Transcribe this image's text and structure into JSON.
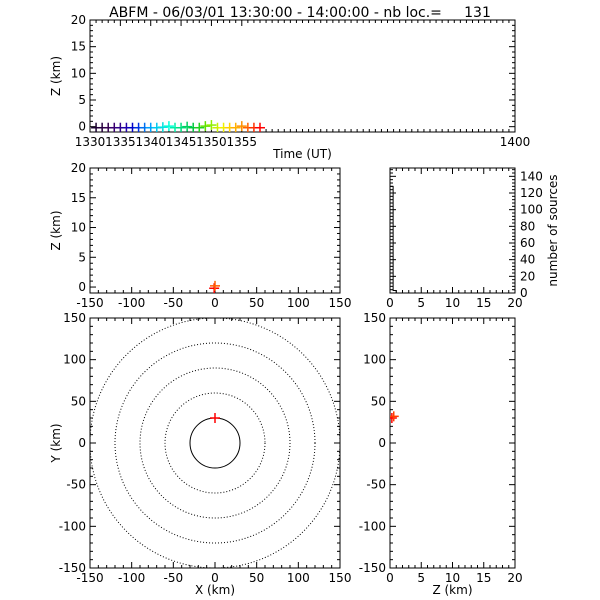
{
  "title": "ABFM - 06/03/01 13:30:00 - 14:00:00 - nb loc.=     131",
  "chart_data": [
    {
      "id": "time-height",
      "type": "scatter",
      "xlabel": "Time (UT)",
      "ylabel": "Z (km)",
      "xlim": [
        1330,
        1400
      ],
      "ylim": [
        -1,
        20
      ],
      "xticks": [
        "1330",
        "1335",
        "1340",
        "1345",
        "1350",
        "1355",
        "1400"
      ],
      "yticks": [
        "0",
        "5",
        "10",
        "15",
        "20"
      ],
      "points": [
        {
          "x": 1331.0,
          "y": -0.2,
          "color": "#1a0030"
        },
        {
          "x": 1332.0,
          "y": -0.2,
          "color": "#26003f"
        },
        {
          "x": 1333.0,
          "y": -0.2,
          "color": "#34004f"
        },
        {
          "x": 1334.0,
          "y": -0.2,
          "color": "#3a0070"
        },
        {
          "x": 1335.0,
          "y": -0.2,
          "color": "#30008a"
        },
        {
          "x": 1336.0,
          "y": -0.2,
          "color": "#2200a8"
        },
        {
          "x": 1337.0,
          "y": -0.2,
          "color": "#0000c8"
        },
        {
          "x": 1338.0,
          "y": -0.2,
          "color": "#0030e0"
        },
        {
          "x": 1339.0,
          "y": -0.2,
          "color": "#0070f0"
        },
        {
          "x": 1340.0,
          "y": -0.2,
          "color": "#00a0ff"
        },
        {
          "x": 1341.0,
          "y": -0.2,
          "color": "#00c8f0"
        },
        {
          "x": 1342.0,
          "y": -0.1,
          "color": "#00e0e0"
        },
        {
          "x": 1343.0,
          "y": 0.1,
          "color": "#00ffd8"
        },
        {
          "x": 1344.0,
          "y": -0.2,
          "color": "#00f0a8"
        },
        {
          "x": 1345.0,
          "y": -0.2,
          "color": "#00e080"
        },
        {
          "x": 1346.0,
          "y": 0.0,
          "color": "#00d060"
        },
        {
          "x": 1347.0,
          "y": -0.2,
          "color": "#00c840"
        },
        {
          "x": 1348.0,
          "y": -0.2,
          "color": "#20d020"
        },
        {
          "x": 1349.0,
          "y": 0.1,
          "color": "#60e000"
        },
        {
          "x": 1350.0,
          "y": 0.3,
          "color": "#90f000"
        },
        {
          "x": 1351.0,
          "y": -0.2,
          "color": "#c8f000"
        },
        {
          "x": 1352.0,
          "y": -0.2,
          "color": "#f0f000"
        },
        {
          "x": 1353.0,
          "y": -0.2,
          "color": "#ffd000"
        },
        {
          "x": 1354.0,
          "y": -0.2,
          "color": "#ffb000"
        },
        {
          "x": 1355.0,
          "y": 0.1,
          "color": "#ff9000"
        },
        {
          "x": 1356.0,
          "y": -0.2,
          "color": "#ff6000"
        },
        {
          "x": 1357.0,
          "y": -0.2,
          "color": "#ff3000"
        },
        {
          "x": 1358.0,
          "y": -0.2,
          "color": "#ff0000"
        }
      ]
    },
    {
      "id": "x-height",
      "type": "scatter",
      "xlabel": "",
      "ylabel": "Z (km)",
      "xlim": [
        -150,
        150
      ],
      "ylim": [
        -1,
        20
      ],
      "xticks": [
        "-150",
        "-100",
        "-50",
        "0",
        "50",
        "100",
        "150"
      ],
      "yticks": [
        "0",
        "5",
        "10",
        "15",
        "20"
      ],
      "points": [
        {
          "x": -1,
          "y": -0.2,
          "color": "#ff0000"
        },
        {
          "x": 0,
          "y": 0.2,
          "color": "#ff6000"
        }
      ]
    },
    {
      "id": "height-histogram",
      "type": "bar",
      "xlabel": "",
      "ylabel": "number of sources",
      "xlim": [
        0,
        20
      ],
      "ylim": [
        0,
        150
      ],
      "xticks": [
        "0",
        "5",
        "10",
        "15",
        "20"
      ],
      "yticks": [
        "0",
        "20",
        "40",
        "60",
        "80",
        "100",
        "120",
        "140"
      ],
      "bins": [
        0,
        0.5,
        1,
        20
      ],
      "counts": [
        128,
        3,
        0
      ]
    },
    {
      "id": "plan-view",
      "type": "scatter",
      "xlabel": "X (km)",
      "ylabel": "Y (km)",
      "xlim": [
        -150,
        150
      ],
      "ylim": [
        -150,
        150
      ],
      "xticks": [
        "-150",
        "-100",
        "-50",
        "0",
        "50",
        "100",
        "150"
      ],
      "yticks": [
        "-150",
        "-100",
        "-50",
        "0",
        "50",
        "100",
        "150"
      ],
      "range_rings_km": [
        30,
        60,
        90,
        120,
        150
      ],
      "points": [
        {
          "x": 0,
          "y": 30,
          "color": "#ff0000"
        }
      ]
    },
    {
      "id": "height-y",
      "type": "scatter",
      "xlabel": "Z (km)",
      "ylabel": "",
      "xlim": [
        0,
        20
      ],
      "ylim": [
        -150,
        150
      ],
      "xticks": [
        "0",
        "5",
        "10",
        "15",
        "20"
      ],
      "yticks": [
        "-150",
        "-100",
        "-50",
        "0",
        "50",
        "100",
        "150"
      ],
      "points": [
        {
          "x": 0.3,
          "y": 30,
          "color": "#ff0000"
        },
        {
          "x": 0.6,
          "y": 32,
          "color": "#ff4000"
        }
      ]
    }
  ]
}
